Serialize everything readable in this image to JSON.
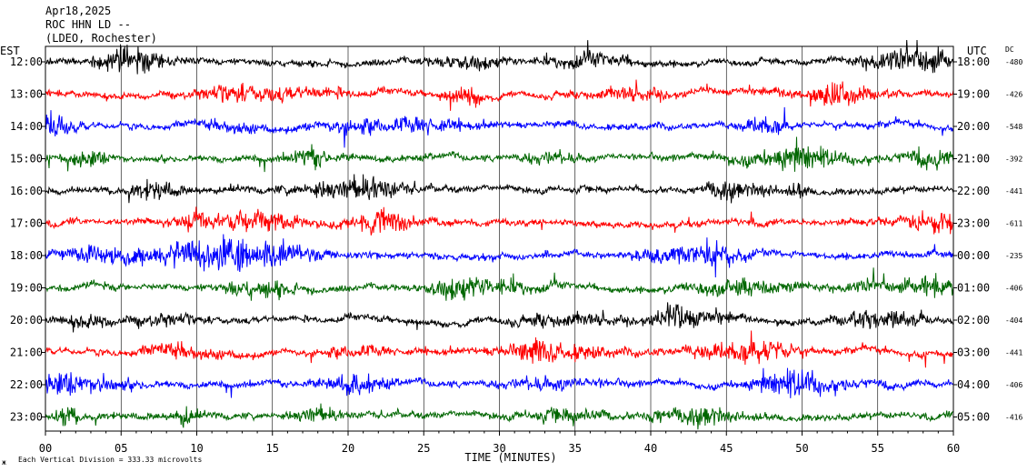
{
  "header": {
    "line1": "Apr18,2025",
    "line2": "ROC HHN LD --",
    "line3": "(LDEO, Rochester)"
  },
  "left_axis_title": "EST",
  "right_axis_title": "UTC",
  "dc_title": "DC",
  "footer": {
    "scale_note": "Each Vertical Division =  333.33 microvolts",
    "corner_mark": "ж"
  },
  "colors": {
    "trace_cycle": [
      "#000000",
      "#ff0000",
      "#0000ff",
      "#006600"
    ],
    "grid": "#000000"
  },
  "chart_data": {
    "type": "line",
    "subtype": "helicorder",
    "xlabel": "TIME (MINUTES)",
    "xlim": [
      0,
      60
    ],
    "x_ticks": [
      "00",
      "05",
      "10",
      "15",
      "20",
      "25",
      "30",
      "35",
      "40",
      "45",
      "50",
      "55",
      "60"
    ],
    "grid": true,
    "rows": [
      {
        "est": "12:00",
        "utc": "18:00",
        "dc": "-480"
      },
      {
        "est": "13:00",
        "utc": "19:00",
        "dc": "-426"
      },
      {
        "est": "14:00",
        "utc": "20:00",
        "dc": "-548"
      },
      {
        "est": "15:00",
        "utc": "21:00",
        "dc": "-392"
      },
      {
        "est": "16:00",
        "utc": "22:00",
        "dc": "-441"
      },
      {
        "est": "17:00",
        "utc": "23:00",
        "dc": "-611"
      },
      {
        "est": "18:00",
        "utc": "00:00",
        "dc": "-235"
      },
      {
        "est": "19:00",
        "utc": "01:00",
        "dc": "-406"
      },
      {
        "est": "20:00",
        "utc": "02:00",
        "dc": "-404"
      },
      {
        "est": "21:00",
        "utc": "03:00",
        "dc": "-441"
      },
      {
        "est": "22:00",
        "utc": "04:00",
        "dc": "-406"
      },
      {
        "est": "23:00",
        "utc": "05:00",
        "dc": "-416"
      }
    ]
  }
}
